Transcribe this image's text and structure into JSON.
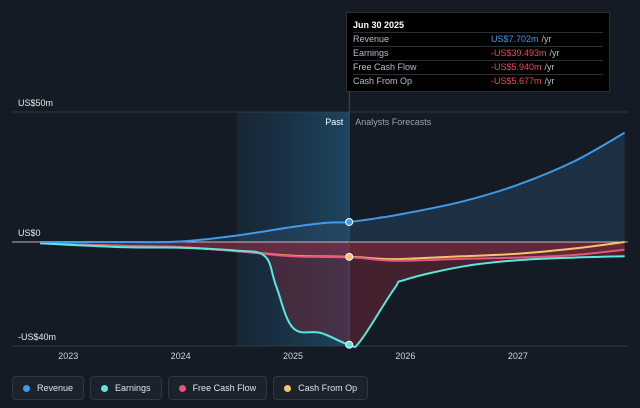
{
  "chart_data": {
    "type": "line",
    "y_axis_labels": {
      "top": "US$50m",
      "zero": "US$0",
      "bottom": "-US$40m"
    },
    "ylim": [
      -40,
      50
    ],
    "x_ticks": [
      "2023",
      "2024",
      "2025",
      "2026",
      "2027"
    ],
    "period_labels": {
      "past": "Past",
      "forecast": "Analysts Forecasts"
    },
    "series": [
      {
        "name": "Revenue",
        "color": "#3d9be9",
        "points": [
          [
            2022.75,
            0
          ],
          [
            2023.5,
            0
          ],
          [
            2024.0,
            0.2
          ],
          [
            2024.5,
            2.5
          ],
          [
            2025.0,
            5.8
          ],
          [
            2025.3,
            7.4
          ],
          [
            2025.5,
            7.7
          ],
          [
            2025.8,
            9.5
          ],
          [
            2026.0,
            11
          ],
          [
            2026.5,
            15.5
          ],
          [
            2027.0,
            22
          ],
          [
            2027.5,
            31
          ],
          [
            2027.95,
            42
          ]
        ]
      },
      {
        "name": "Earnings",
        "color": "#58e8dd",
        "points": [
          [
            2022.75,
            -0.5
          ],
          [
            2023.5,
            -2
          ],
          [
            2024.0,
            -2.2
          ],
          [
            2024.5,
            -3.3
          ],
          [
            2024.75,
            -5.5
          ],
          [
            2024.85,
            -17
          ],
          [
            2025.0,
            -33
          ],
          [
            2025.25,
            -35
          ],
          [
            2025.5,
            -39.5
          ],
          [
            2025.6,
            -38
          ],
          [
            2025.9,
            -18
          ],
          [
            2026.0,
            -14.5
          ],
          [
            2026.5,
            -9.5
          ],
          [
            2027.0,
            -7
          ],
          [
            2027.5,
            -6
          ],
          [
            2027.95,
            -5.5
          ]
        ]
      },
      {
        "name": "Free Cash Flow",
        "color": "#e8547c",
        "points": [
          [
            2022.75,
            -0.5
          ],
          [
            2023.5,
            -1.5
          ],
          [
            2024.0,
            -2
          ],
          [
            2024.5,
            -3.5
          ],
          [
            2025.0,
            -5.5
          ],
          [
            2025.5,
            -5.9
          ],
          [
            2025.8,
            -7
          ],
          [
            2026.0,
            -7.2
          ],
          [
            2026.5,
            -6.5
          ],
          [
            2027.0,
            -6
          ],
          [
            2027.5,
            -5
          ],
          [
            2027.95,
            -3
          ]
        ]
      },
      {
        "name": "Cash From Op",
        "color": "#f2c46d",
        "points": [
          [
            2022.75,
            -0.5
          ],
          [
            2023.5,
            -1.5
          ],
          [
            2024.0,
            -2
          ],
          [
            2024.5,
            -3.5
          ],
          [
            2025.0,
            -5.3
          ],
          [
            2025.5,
            -5.7
          ],
          [
            2025.8,
            -6.5
          ],
          [
            2026.0,
            -6.5
          ],
          [
            2026.5,
            -5.5
          ],
          [
            2027.0,
            -4.5
          ],
          [
            2027.5,
            -2.5
          ],
          [
            2027.95,
            0
          ]
        ]
      }
    ],
    "highlight_x": 2025.5,
    "past_region_start": 2024.5
  },
  "tooltip": {
    "date": "Jun 30 2025",
    "rows": [
      {
        "label": "Revenue",
        "value": "US$7.702m",
        "unit": "/yr"
      },
      {
        "label": "Earnings",
        "value": "-US$39.493m",
        "unit": "/yr"
      },
      {
        "label": "Free Cash Flow",
        "value": "-US$5.940m",
        "unit": "/yr"
      },
      {
        "label": "Cash From Op",
        "value": "-US$5.677m",
        "unit": "/yr"
      }
    ]
  },
  "legend": [
    {
      "label": "Revenue",
      "color": "#3d9be9"
    },
    {
      "label": "Earnings",
      "color": "#58e8dd"
    },
    {
      "label": "Free Cash Flow",
      "color": "#e8547c"
    },
    {
      "label": "Cash From Op",
      "color": "#f2c46d"
    }
  ]
}
